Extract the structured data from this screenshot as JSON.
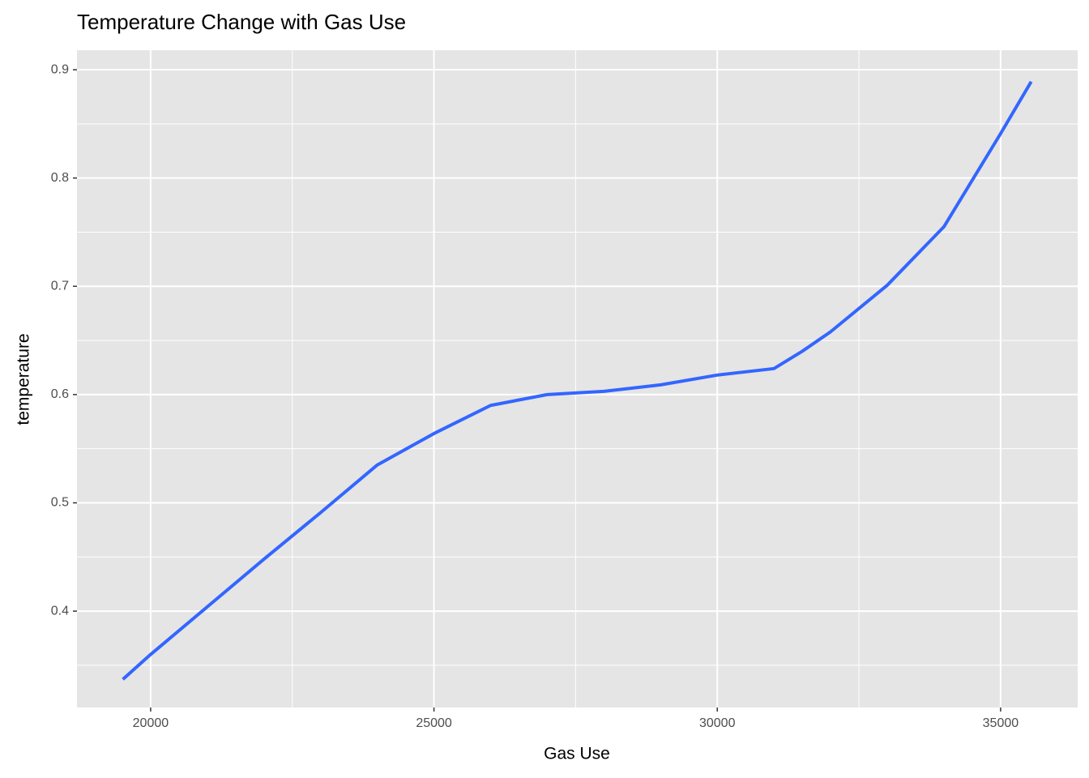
{
  "chart_data": {
    "type": "line",
    "title": "Temperature Change with Gas Use",
    "x_label": "Gas Use",
    "y_label": "temperature",
    "series": [
      {
        "name": "temperature",
        "color": "#3366ff",
        "x": [
          19510,
          20000,
          21000,
          22000,
          23000,
          24000,
          25000,
          26000,
          27000,
          28000,
          29000,
          30000,
          31000,
          31500,
          32000,
          33000,
          34000,
          35000,
          35540
        ],
        "values": [
          0.337,
          0.36,
          0.404,
          0.448,
          0.491,
          0.535,
          0.564,
          0.59,
          0.6,
          0.603,
          0.609,
          0.618,
          0.624,
          0.64,
          0.658,
          0.701,
          0.755,
          0.841,
          0.889
        ]
      }
    ],
    "xlim": [
      18700,
      36360
    ],
    "xticks": [
      20000,
      25000,
      30000,
      35000
    ],
    "x_minor_ticks": [
      22500,
      27500,
      32500
    ],
    "ylim": [
      0.311,
      0.918
    ],
    "yticks": [
      0.4,
      0.5,
      0.6,
      0.7,
      0.8,
      0.9
    ],
    "y_minor_ticks": [
      0.35,
      0.45,
      0.55,
      0.65,
      0.75,
      0.85
    ],
    "grid": true
  }
}
